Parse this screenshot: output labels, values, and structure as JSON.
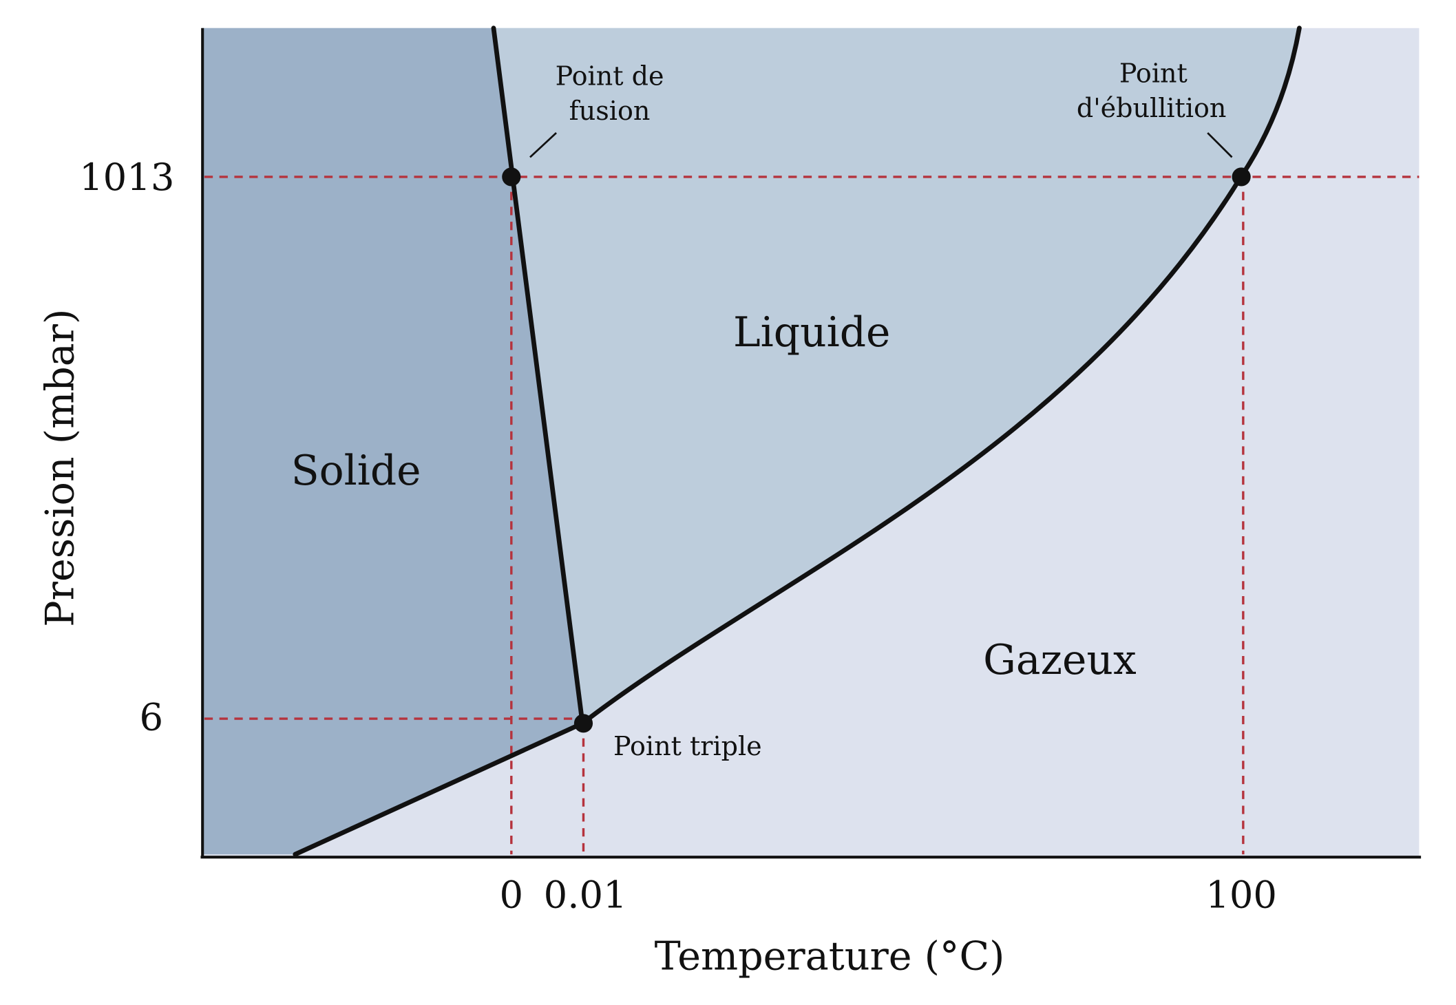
{
  "diagram": {
    "regions": {
      "solid": "Solide",
      "liquid": "Liquide",
      "gas": "Gazeux"
    },
    "points": {
      "fusion": {
        "label_line1": "Point de",
        "label_line2": "fusion"
      },
      "boiling": {
        "label_line1": "Point",
        "label_line2": "d'ébullition"
      },
      "triple": {
        "label": "Point triple"
      }
    },
    "axes": {
      "x_label": "Temperature (°C)",
      "y_label": "Pression (mbar)",
      "x_ticks": {
        "t0": "0",
        "t001": "0.01",
        "t100": "100"
      },
      "y_ticks": {
        "p1013": "1013",
        "p6": "6"
      }
    },
    "colors": {
      "solid": "#9cb1c8",
      "liquid": "#bdcddc",
      "gas": "#dde2ee",
      "curve": "#111111",
      "guide": "#b5333d"
    }
  }
}
